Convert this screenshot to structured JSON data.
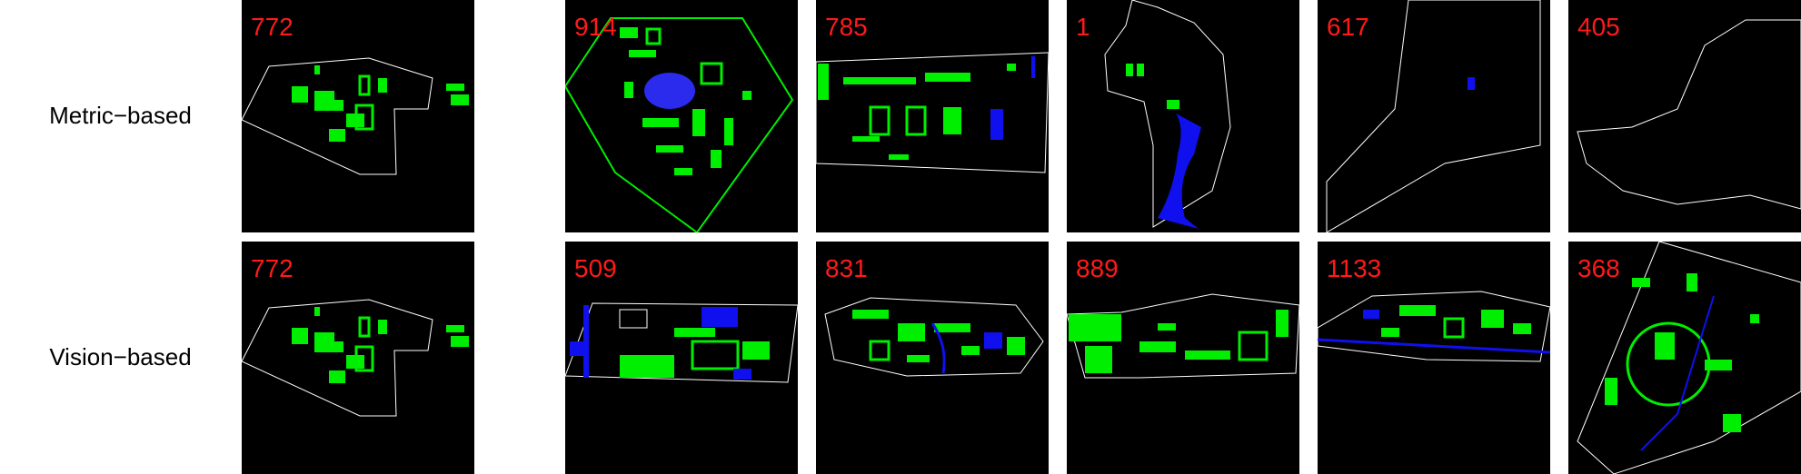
{
  "colors": {
    "background": "#000000",
    "outline": "#ffffff",
    "green": "#00ee00",
    "blue": "#1010ee",
    "label": "#ff1a1a"
  },
  "rows": [
    {
      "label": "Metric−based",
      "panels": [
        {
          "id": "772"
        },
        {
          "id": "914"
        },
        {
          "id": "785"
        },
        {
          "id": "1"
        },
        {
          "id": "617"
        },
        {
          "id": "405"
        }
      ]
    },
    {
      "label": "Vision−based",
      "panels": [
        {
          "id": "772"
        },
        {
          "id": "509"
        },
        {
          "id": "831"
        },
        {
          "id": "889"
        },
        {
          "id": "1133"
        },
        {
          "id": "368"
        }
      ]
    }
  ]
}
